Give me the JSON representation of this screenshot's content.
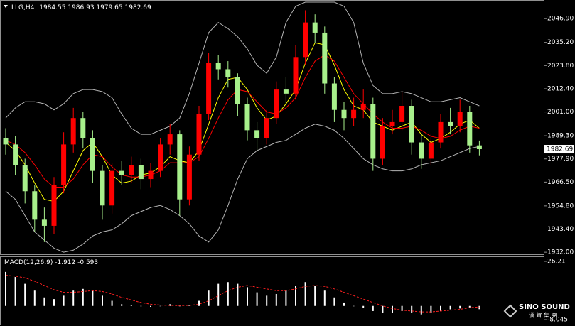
{
  "chart_data": [
    {
      "type": "candlestick",
      "symbol": "LLG,H4",
      "open": [
        1988,
        1985,
        1975,
        1962,
        1948,
        1945,
        1965,
        1985,
        1998,
        1988,
        1972,
        1955,
        1972,
        1970,
        1975,
        1968,
        1972,
        1985,
        1990,
        1958,
        1980,
        2000,
        2025,
        2022,
        2018,
        2005,
        1992,
        1988,
        1998,
        2012,
        2010,
        2028,
        2045,
        2040,
        2015,
        2002,
        1998,
        2002,
        2005,
        1978,
        1994,
        1996,
        2004,
        1986,
        1978,
        1986,
        1996,
        1994,
        2001,
        1984.55
      ],
      "high": [
        1993,
        1989,
        1978,
        1965,
        1954,
        1969,
        1991,
        2003,
        2001,
        1992,
        1975,
        1976,
        1977,
        1979,
        1978,
        1976,
        1988,
        1995,
        1992,
        1984,
        2004,
        2030,
        2029,
        2026,
        2020,
        2008,
        1996,
        2002,
        2016,
        2018,
        2034,
        2051,
        2049,
        2043,
        2018,
        2006,
        2008,
        2012,
        2008,
        1998,
        2002,
        2011,
        2007,
        1990,
        1990,
        2000,
        2003,
        2007,
        2004,
        1986.93
      ],
      "low": [
        1980,
        1970,
        1956,
        1942,
        1937,
        1941,
        1961,
        1981,
        1983,
        1966,
        1948,
        1951,
        1965,
        1966,
        1963,
        1964,
        1969,
        1980,
        1950,
        1955,
        1977,
        1997,
        2017,
        2013,
        1999,
        1987,
        1982,
        1985,
        1995,
        2005,
        2007,
        2024,
        2035,
        2010,
        1996,
        1992,
        1994,
        1998,
        1972,
        1975,
        1990,
        1992,
        1980,
        1973,
        1975,
        1983,
        1990,
        1991,
        1981,
        1979.65
      ],
      "close": [
        1985,
        1975,
        1962,
        1948,
        1945,
        1965,
        1985,
        1998,
        1988,
        1972,
        1955,
        1972,
        1970,
        1975,
        1968,
        1972,
        1985,
        1990,
        1958,
        1980,
        2000,
        2025,
        2022,
        2018,
        2005,
        1992,
        1988,
        1998,
        2012,
        2010,
        2028,
        2045,
        2040,
        2015,
        2002,
        1998,
        2002,
        2005,
        1978,
        1994,
        1996,
        2004,
        1986,
        1978,
        1986,
        1996,
        1994,
        2001,
        1984.55,
        1982.69
      ],
      "up_color": "#ff0000",
      "down_color": "#a8f08c",
      "series": [
        {
          "color": "#ffff00",
          "values": [
            1986,
            1982,
            1975,
            1966,
            1958,
            1957,
            1962,
            1972,
            1982,
            1986,
            1979,
            1970,
            1966,
            1967,
            1970,
            1971,
            1974,
            1979,
            1977,
            1976,
            1982,
            1995,
            2008,
            2017,
            2018,
            2012,
            2003,
            1997,
            1999,
            2005,
            2012,
            2025,
            2035,
            2034,
            2024,
            2012,
            2004,
            2002,
            1996,
            1994,
            1992,
            1994,
            1996,
            1990,
            1986,
            1988,
            1991,
            1995,
            1997,
            1993
          ]
        },
        {
          "color": "#ff0000",
          "values": [
            1987,
            1985,
            1981,
            1975,
            1968,
            1964,
            1964,
            1968,
            1975,
            1980,
            1979,
            1974,
            1970,
            1969,
            1969,
            1970,
            1972,
            1976,
            1976,
            1976,
            1979,
            1988,
            1998,
            2007,
            2012,
            2011,
            2006,
            2001,
            2000,
            2003,
            2008,
            2018,
            2026,
            2029,
            2026,
            2018,
            2010,
            2005,
            2000,
            1996,
            1993,
            1993,
            1994,
            1992,
            1989,
            1988,
            1989,
            1992,
            1994,
            1993
          ]
        },
        {
          "color": "#b4b4b4",
          "values": [
            1998,
            2003,
            2006,
            2006,
            2005,
            2002,
            2005,
            2010,
            2012,
            2012,
            2011,
            2008,
            2000,
            1993,
            1990,
            1990,
            1992,
            1994,
            1998,
            2010,
            2025,
            2040,
            2045,
            2042,
            2038,
            2032,
            2024,
            2020,
            2028,
            2045,
            2053,
            2055,
            2055,
            2055,
            2055,
            2053,
            2045,
            2025,
            2014,
            2010,
            2010,
            2011,
            2010,
            2008,
            2006,
            2006,
            2007,
            2008,
            2006,
            2004
          ]
        },
        {
          "color": "#b4b4b4",
          "values": [
            1962,
            1958,
            1950,
            1942,
            1938,
            1934,
            1932,
            1933,
            1936,
            1940,
            1942,
            1943,
            1946,
            1950,
            1952,
            1954,
            1955,
            1953,
            1950,
            1946,
            1940,
            1937,
            1943,
            1955,
            1968,
            1978,
            1982,
            1984,
            1986,
            1987,
            1990,
            1993,
            1995,
            1994,
            1992,
            1988,
            1983,
            1978,
            1975,
            1973,
            1972,
            1972,
            1973,
            1975,
            1976,
            1977,
            1979,
            1981,
            1983,
            1984
          ]
        }
      ],
      "ylim": [
        1931,
        2055
      ],
      "yticks": [
        {
          "value": 2046.9,
          "label": "2046.90"
        },
        {
          "value": 2035.2,
          "label": "2035.20"
        },
        {
          "value": 2023.8,
          "label": "2023.80"
        },
        {
          "value": 2012.4,
          "label": "2012.40"
        },
        {
          "value": 2001,
          "label": "2001.00"
        },
        {
          "value": 1989.3,
          "label": "1989.30"
        },
        {
          "value": 1977.9,
          "label": "1977.90"
        },
        {
          "value": 1966.5,
          "label": "1966.50"
        },
        {
          "value": 1954.8,
          "label": "1954.80"
        },
        {
          "value": 1943.4,
          "label": "1943.40"
        },
        {
          "value": 1932,
          "label": "1932.00"
        }
      ]
    },
    {
      "type": "macd",
      "title": "MACD(12,26,9)",
      "histogram": {
        "color": "#ffffff",
        "values": [
          20,
          17,
          13,
          9,
          5,
          4,
          6,
          9,
          10,
          9,
          6,
          3,
          1,
          0.5,
          0,
          -0.5,
          0,
          1,
          0,
          0.5,
          3,
          9,
          13,
          14,
          13,
          11,
          8,
          6,
          7,
          9,
          12,
          14,
          12,
          9,
          5,
          2,
          0,
          -1,
          -3,
          -4,
          -4,
          -3,
          -4,
          -5,
          -4,
          -3,
          -2,
          -1.5,
          -1,
          -1.912
        ]
      },
      "signal": {
        "color": "#ff2020",
        "values": [
          18,
          17.5,
          16.5,
          14.5,
          12,
          9.5,
          8,
          8,
          8.5,
          9,
          8.5,
          7,
          5,
          3.5,
          2,
          1,
          0.5,
          0.3,
          0.2,
          0.3,
          1,
          3,
          6,
          9,
          11,
          12,
          11,
          10,
          9,
          9,
          10,
          11.5,
          12,
          11.5,
          10,
          8,
          6,
          4,
          2,
          0,
          -1.5,
          -2.5,
          -3,
          -3.5,
          -3.5,
          -3,
          -2.5,
          -2,
          -1,
          -0.593
        ]
      },
      "ylim": [
        -8.045,
        26.21
      ],
      "yticks": [
        26.21,
        -8.045
      ]
    }
  ],
  "watermark": {
    "name": "SINO SOUND",
    "subtitle": "漢 聲 集 團"
  }
}
